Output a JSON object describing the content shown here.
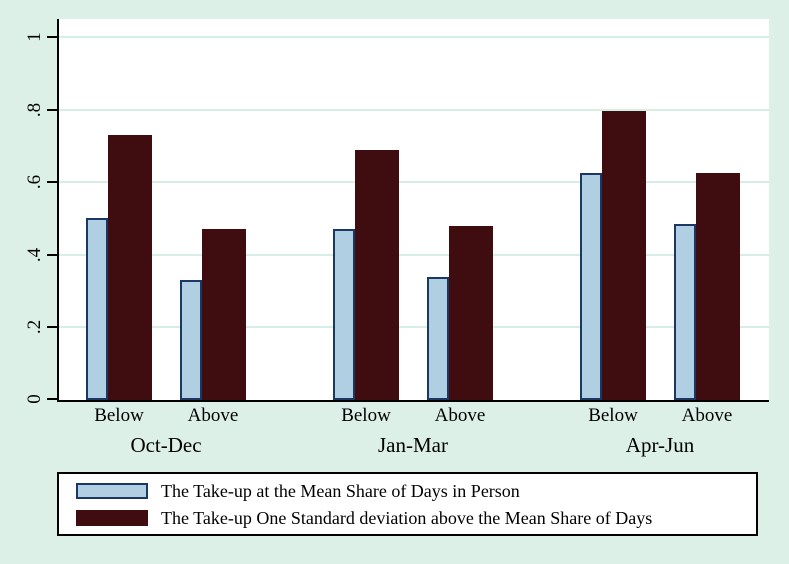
{
  "chart_data": {
    "type": "bar",
    "title": "",
    "xlabel": "",
    "ylabel": "",
    "categories": [
      "Below",
      "Above",
      "Below",
      "Above",
      "Below",
      "Above"
    ],
    "group_labels": [
      "Oct-Dec",
      "Jan-Mar",
      "Apr-Jun"
    ],
    "series": [
      {
        "name": "The Take-up at the Mean Share of Days in Person",
        "color": "#b0cfe2",
        "border_color": "#1b3764",
        "values": [
          0.5,
          0.33,
          0.47,
          0.34,
          0.625,
          0.485
        ]
      },
      {
        "name": "The Take-up One Standard deviation above the Mean Share of Days",
        "color": "#3f0c0f",
        "border_color": "#3f0c0f",
        "values": [
          0.73,
          0.47,
          0.69,
          0.48,
          0.795,
          0.625
        ]
      }
    ],
    "ylim": [
      0,
      1
    ],
    "yticks": [
      0,
      0.2,
      0.4,
      0.6,
      0.8,
      1
    ],
    "ytick_labels": [
      "0",
      ".2",
      ".4",
      ".6",
      ".8",
      "1"
    ],
    "grid": true,
    "legend_position": "bottom-outside"
  },
  "style": {
    "background": "#ddf0e8",
    "plot_background": "#ffffff",
    "gridline_color": "#d6efe5",
    "axis_color": "#000000",
    "text_color": "#000000",
    "legend_background": "#ffffff",
    "legend_border": "#000000"
  }
}
